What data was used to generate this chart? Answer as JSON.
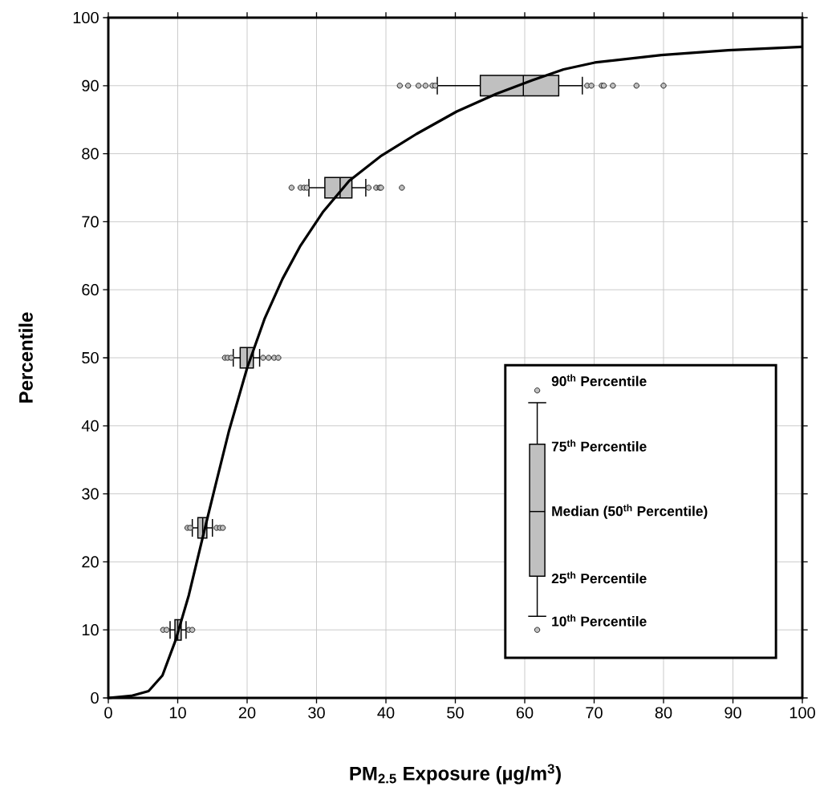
{
  "chart_data": {
    "type": "box",
    "orientation": "horizontal",
    "xlabel": "PM$_{2.5}$ Exposure (µg/m$^{3}$)",
    "ylabel": "Percentile",
    "xlim": [
      0,
      100
    ],
    "ylim": [
      0,
      100
    ],
    "xticks": [
      0,
      10,
      20,
      30,
      40,
      50,
      60,
      70,
      80,
      90,
      100
    ],
    "yticks": [
      0,
      10,
      20,
      30,
      40,
      50,
      60,
      70,
      80,
      90,
      100
    ],
    "grid": true,
    "annotations": [
      "90$^{th}$ Percentile",
      "75$^{th}$ Percentile",
      "Median (50$^{th}$ Percentile)",
      "25$^{th}$ Percentile",
      "10$^{th}$ Percentile"
    ],
    "series": [
      {
        "type": "line",
        "color": "#000000",
        "values": [
          0,
          3.3,
          5.8,
          7.8,
          9.7,
          11.6,
          13.6,
          15.5,
          17.4,
          20,
          22.5,
          25.1,
          27.7,
          30.9,
          34.7,
          39.2,
          44.4,
          50.2,
          55.9,
          61.1,
          65.6,
          70.1,
          79.7,
          89.3,
          100
        ],
        "x": [
          0,
          0.3,
          1.0,
          3.3,
          8.5,
          15.1,
          23.6,
          31.5,
          39.3,
          48.5,
          55.7,
          61.6,
          66.5,
          71.4,
          76,
          79.6,
          82.9,
          86.2,
          88.8,
          90.8,
          92.4,
          93.4,
          94.5,
          95.2,
          95.7
        ]
      },
      {
        "color": "#c0c0c0",
        "x": [
          10,
          25,
          50,
          75,
          90
        ],
        "boxes": [
          {
            "low": 8.9,
            "q1": 9.6,
            "median": 10.0,
            "q3": 10.5,
            "high": 11.2,
            "outliers": [
              7.9,
              8.4,
              11.6,
              12.1
            ]
          },
          {
            "low": 12.1,
            "q1": 12.9,
            "median": 13.6,
            "q3": 14.2,
            "high": 15.0,
            "outliers": [
              11.4,
              11.8,
              15.6,
              16.1,
              16.5
            ]
          },
          {
            "low": 18.0,
            "q1": 19.0,
            "median": 20.0,
            "q3": 20.9,
            "high": 21.8,
            "outliers": [
              16.8,
              17.2,
              17.7,
              22.3,
              23.1,
              23.9,
              24.5
            ]
          },
          {
            "low": 28.9,
            "q1": 31.2,
            "median": 33.4,
            "q3": 35.1,
            "high": 37.1,
            "outliers": [
              26.4,
              27.7,
              28.2,
              28.6,
              37.5,
              38.6,
              39.1,
              39.3,
              42.3
            ]
          },
          {
            "low": 47.4,
            "q1": 53.6,
            "median": 59.8,
            "q3": 64.9,
            "high": 68.3,
            "outliers": [
              42.0,
              43.2,
              44.7,
              45.7,
              46.7,
              47.1,
              69.0,
              69.6,
              71.1,
              71.4,
              72.7,
              76.1,
              80.0
            ]
          }
        ]
      }
    ]
  }
}
